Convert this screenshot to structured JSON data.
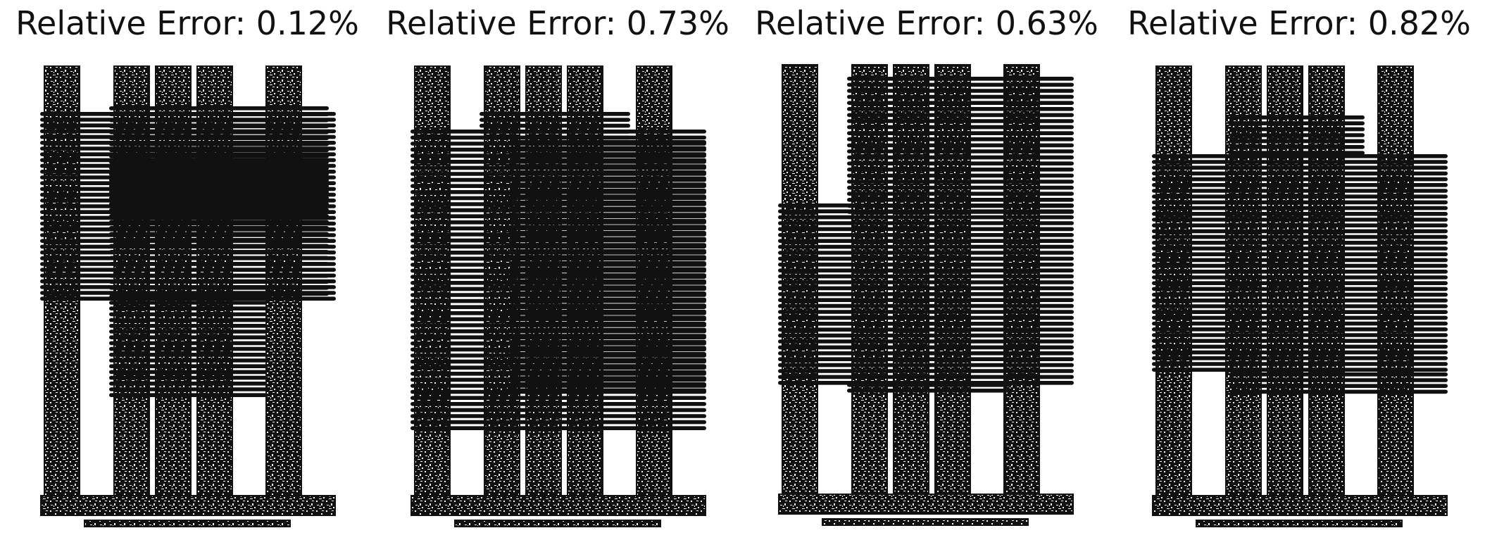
{
  "colors": {
    "ink": "#111111",
    "background": "#ffffff"
  },
  "panels": [
    {
      "title": "Relative Error: 0.12%",
      "variant": 1
    },
    {
      "title": "Relative Error: 0.73%",
      "variant": 2
    },
    {
      "title": "Relative Error: 0.63%",
      "variant": 3
    },
    {
      "title": "Relative Error: 0.82%",
      "variant": 4
    }
  ]
}
